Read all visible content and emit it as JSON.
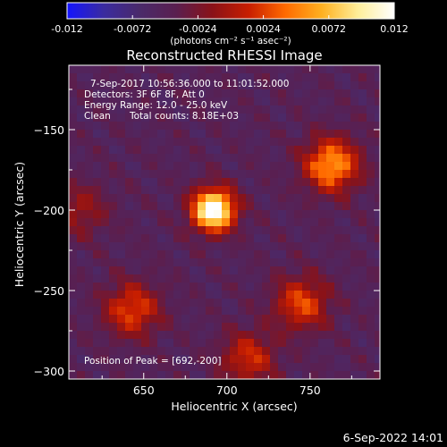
{
  "chart_data": {
    "type": "heatmap",
    "title": "Reconstructed RHESSI Image",
    "xlabel": "Heliocentric X (arcsec)",
    "ylabel": "Heliocentric Y (arcsec)",
    "xlim": [
      605,
      792
    ],
    "ylim": [
      -305,
      -110
    ],
    "xticks": [
      650,
      700,
      750
    ],
    "yticks": [
      -150,
      -200,
      -250,
      -300
    ],
    "colorbar": {
      "min": -0.012,
      "max": 0.012,
      "ticks": [
        "-0.012",
        "-0.0072",
        "-0.0024",
        "0.0024",
        "0.0072",
        "0.012"
      ],
      "units_label": "(photons cm⁻² s⁻¹ asec⁻²)",
      "colormap": [
        "#1414ff",
        "#3a2ba0",
        "#4a2a6a",
        "#5a1f50",
        "#8a1218",
        "#c81e00",
        "#ff6a00",
        "#ffb020",
        "#ffee99",
        "#ffffff"
      ]
    },
    "annotations": [
      "7-Sep-2017 10:56:36.000 to 11:01:52.000",
      "Detectors: 3F 6F 8F, Att 0",
      "Energy Range: 12.0 - 25.0 keV",
      "Clean",
      "Total counts: 8.18E+03"
    ],
    "peak_label": "Position of Peak = [692,-200]",
    "sources": [
      {
        "x": 692,
        "y": -200,
        "peak": 1.0
      },
      {
        "x": 763,
        "y": -172,
        "peak": 0.6
      },
      {
        "x": 745,
        "y": -258,
        "peak": 0.42
      },
      {
        "x": 643,
        "y": -262,
        "peak": 0.42
      },
      {
        "x": 713,
        "y": -292,
        "peak": 0.35
      },
      {
        "x": 612,
        "y": -200,
        "peak": 0.22
      }
    ],
    "timestamp": "6-Sep-2022 14:01"
  }
}
